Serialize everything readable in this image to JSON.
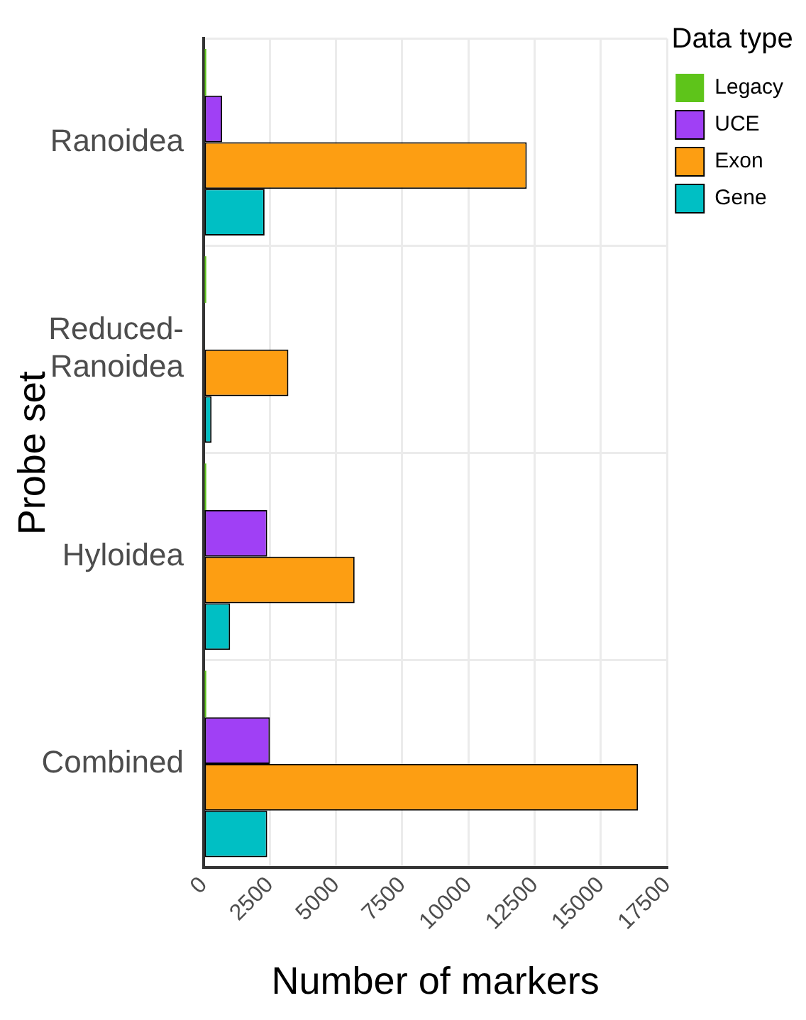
{
  "chart_data": {
    "type": "bar",
    "orientation": "horizontal",
    "xlabel": "Number of markers",
    "ylabel": "Probe set",
    "legend_title": "Data type",
    "legend": "top right",
    "grid": true,
    "categories": [
      "Ranoidea",
      "Reduced-Ranoidea",
      "Hyloidea",
      "Combined"
    ],
    "series": [
      {
        "name": "Legacy",
        "color": "#5ec41a",
        "values": [
          100,
          100,
          100,
          100
        ]
      },
      {
        "name": "UCE",
        "color": "#a040f5",
        "values": [
          700,
          0,
          2400,
          2500
        ]
      },
      {
        "name": "Exon",
        "color": "#fd9e12",
        "values": [
          12200,
          3200,
          5700,
          16400
        ]
      },
      {
        "name": "Gene",
        "color": "#00bfc4",
        "values": [
          2300,
          300,
          1000,
          2400
        ]
      }
    ],
    "xlim": [
      0,
      17500
    ],
    "xticks": [
      0,
      2500,
      5000,
      7500,
      10000,
      12500,
      15000,
      17500
    ]
  }
}
